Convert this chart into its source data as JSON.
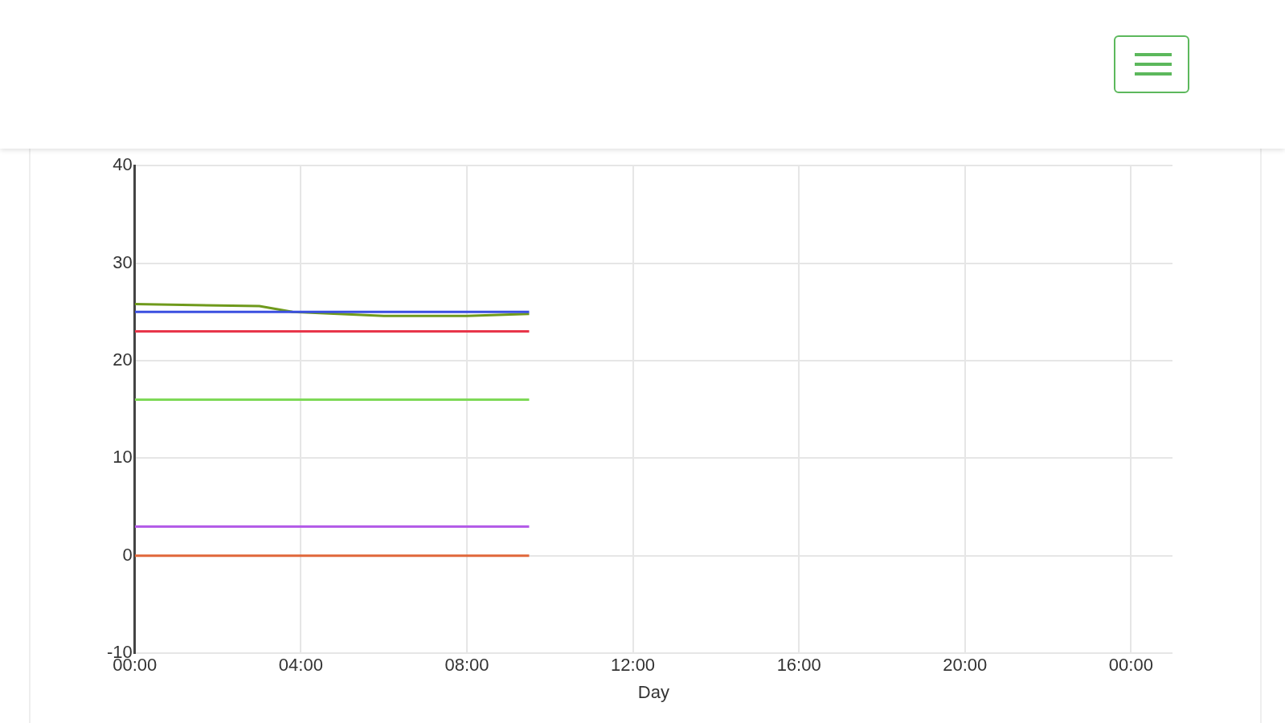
{
  "chart_data": {
    "type": "line",
    "xlabel": "Day",
    "xlim": [
      0,
      25
    ],
    "xticks": [
      {
        "value": 0,
        "label": "00:00"
      },
      {
        "value": 4,
        "label": "04:00"
      },
      {
        "value": 8,
        "label": "08:00"
      },
      {
        "value": 12,
        "label": "12:00"
      },
      {
        "value": 16,
        "label": "16:00"
      },
      {
        "value": 20,
        "label": "20:00"
      },
      {
        "value": 24,
        "label": "00:00"
      }
    ],
    "ylim": [
      -10,
      40
    ],
    "yticks": [
      -10,
      0,
      10,
      20,
      30,
      40
    ],
    "grid": true,
    "legend": false,
    "marker": "none",
    "line_style": "solid",
    "series": [
      {
        "color": "#7ed957",
        "x": [
          0,
          9.5
        ],
        "values": [
          16,
          16
        ]
      },
      {
        "color": "#b45ce8",
        "x": [
          0,
          9.5
        ],
        "values": [
          3,
          3
        ]
      },
      {
        "color": "#e0673a",
        "x": [
          0,
          9.5
        ],
        "values": [
          0,
          0
        ]
      },
      {
        "color": "#e8364a",
        "x": [
          0,
          9.5
        ],
        "values": [
          23,
          23
        ]
      },
      {
        "color": "#3b4fe0",
        "x": [
          0,
          9.5
        ],
        "values": [
          25,
          25
        ]
      },
      {
        "color": "#6f9a1c",
        "x": [
          0,
          3,
          3.8,
          6,
          8,
          9.5
        ],
        "values": [
          25.8,
          25.6,
          25,
          24.6,
          24.6,
          24.8
        ]
      }
    ]
  }
}
